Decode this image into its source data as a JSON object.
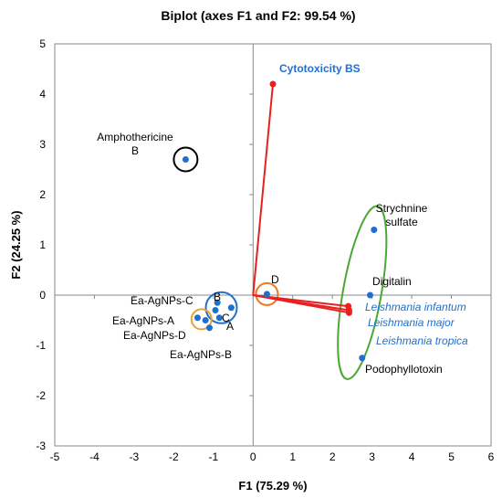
{
  "chart_data": {
    "type": "scatter",
    "title": "Biplot (axes F1 and F2: 99.54 %)",
    "xlabel": "F1 (75.29 %)",
    "ylabel": "F2 (24.25 %)",
    "xlim": [
      -5,
      6
    ],
    "ylim": [
      -3,
      5
    ],
    "xticks": [
      "-5",
      "-4",
      "-3",
      "-2",
      "-1",
      "0",
      "1",
      "2",
      "3",
      "4",
      "5",
      "6"
    ],
    "yticks": [
      "-3",
      "-2",
      "-1",
      "0",
      "1",
      "2",
      "3",
      "4",
      "5"
    ],
    "grid": false,
    "observations": [
      {
        "name": "Amphothericine B",
        "lines": [
          "Amphothericine",
          "B"
        ],
        "x": -1.7,
        "y": 2.7
      },
      {
        "name": "Strychnine sulfate",
        "lines": [
          "Strychnine",
          "sulfate"
        ],
        "x": 3.05,
        "y": 1.3
      },
      {
        "name": "Digitalin",
        "lines": [
          "Digitalin"
        ],
        "x": 2.95,
        "y": 0.0
      },
      {
        "name": "Podophyllotoxin",
        "lines": [
          "Podophyllotoxin"
        ],
        "x": 2.75,
        "y": -1.25
      },
      {
        "name": "D",
        "lines": [
          "D"
        ],
        "x": 0.35,
        "y": 0.02
      },
      {
        "name": "B",
        "lines": [
          "B"
        ],
        "x": -0.9,
        "y": -0.15
      },
      {
        "name": "C",
        "lines": [
          "C"
        ],
        "x": -0.85,
        "y": -0.45
      },
      {
        "name": "A",
        "lines": [
          "A"
        ],
        "x": -0.55,
        "y": -0.25
      },
      {
        "name": "Ea-AgNPs-C",
        "lines": [
          "Ea-AgNPs-C"
        ],
        "x": -0.95,
        "y": -0.3
      },
      {
        "name": "Ea-AgNPs-A",
        "lines": [
          "Ea-AgNPs-A"
        ],
        "x": -1.4,
        "y": -0.45
      },
      {
        "name": "Ea-AgNPs-D",
        "lines": [
          "Ea-AgNPs-D"
        ],
        "x": -1.2,
        "y": -0.5
      },
      {
        "name": "Ea-AgNPs-B",
        "lines": [
          "Ea-AgNPs-B"
        ],
        "x": -1.1,
        "y": -0.65
      }
    ],
    "variables": [
      {
        "name": "Cytotoxicity BS",
        "x": 0.5,
        "y": 4.2
      },
      {
        "name": "Leishmania infantum",
        "x": 2.4,
        "y": -0.22
      },
      {
        "name": "Leishmania major",
        "x": 2.42,
        "y": -0.3
      },
      {
        "name": "Leishmania tropica",
        "x": 2.42,
        "y": -0.35
      }
    ],
    "groups": [
      {
        "name": "black-circle",
        "color": "#000000"
      },
      {
        "name": "blue-circle",
        "color": "#1f6fd1"
      },
      {
        "name": "orange-circle-small",
        "color": "#f0a030"
      },
      {
        "name": "orange-circle-d",
        "color": "#f07820"
      },
      {
        "name": "green-ellipse",
        "color": "#4aa836"
      }
    ],
    "colors": {
      "observation": "#1f6fd1",
      "vector": "#e82020",
      "variable_label": "#1f6fd1",
      "axis": "#888888"
    }
  }
}
